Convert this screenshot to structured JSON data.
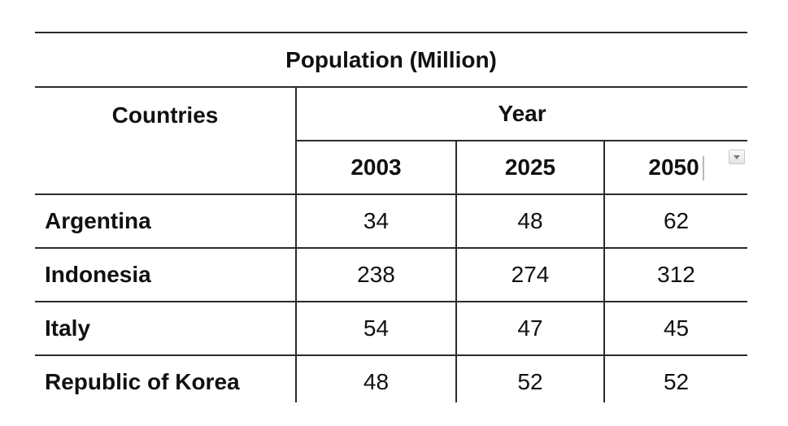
{
  "table": {
    "title": "Population (Million)",
    "row_header_label": "Countries",
    "column_group_label": "Year",
    "years": [
      "2003",
      "2025",
      "2050"
    ],
    "rows": [
      {
        "country": "Argentina",
        "values": [
          "34",
          "48",
          "62"
        ]
      },
      {
        "country": "Indonesia",
        "values": [
          "238",
          "274",
          "312"
        ]
      },
      {
        "country": "Italy",
        "values": [
          "54",
          "47",
          "45"
        ]
      },
      {
        "country": "Republic of Korea",
        "values": [
          "48",
          "52",
          "52"
        ]
      }
    ]
  },
  "icons": {
    "filter_dropdown": "chevron-down-icon"
  }
}
